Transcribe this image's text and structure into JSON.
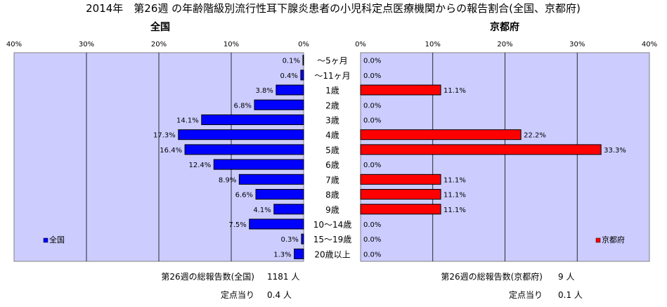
{
  "title": "2014年　第26週 の年齢階級別流行性耳下腺炎患者の小児科定点医療機関からの報告割合(全国、京都府)",
  "chart_data": [
    {
      "type": "bar",
      "orientation": "horizontal",
      "direction": "right-to-left",
      "title": "全国",
      "categories": [
        "～5ヶ月",
        "～11ヶ月",
        "1歳",
        "2歳",
        "3歳",
        "4歳",
        "5歳",
        "6歳",
        "7歳",
        "8歳",
        "9歳",
        "10～14歳",
        "15～19歳",
        "20歳以上"
      ],
      "values": [
        0.1,
        0.4,
        3.8,
        6.8,
        14.1,
        17.3,
        16.4,
        12.4,
        8.9,
        6.6,
        4.1,
        7.5,
        0.3,
        1.3
      ],
      "value_labels": [
        "0.1%",
        "0.4%",
        "3.8%",
        "6.8%",
        "14.1%",
        "17.3%",
        "16.4%",
        "12.4%",
        "8.9%",
        "6.6%",
        "4.1%",
        "7.5%",
        "0.3%",
        "1.3%"
      ],
      "xlim": [
        0,
        40
      ],
      "tick_labels": [
        "40%",
        "30%",
        "20%",
        "10%",
        "0%"
      ],
      "legend": "全国",
      "legend_position": "bottom-left",
      "grid": true,
      "bar_color": "#0000ff",
      "plot_bg": "#ccccff"
    },
    {
      "type": "bar",
      "orientation": "horizontal",
      "direction": "left-to-right",
      "title": "京都府",
      "categories": [
        "～5ヶ月",
        "～11ヶ月",
        "1歳",
        "2歳",
        "3歳",
        "4歳",
        "5歳",
        "6歳",
        "7歳",
        "8歳",
        "9歳",
        "10～14歳",
        "15～19歳",
        "20歳以上"
      ],
      "values": [
        0.0,
        0.0,
        11.1,
        0.0,
        0.0,
        22.2,
        33.3,
        0.0,
        11.1,
        11.1,
        11.1,
        0.0,
        0.0,
        0.0
      ],
      "value_labels": [
        "0.0%",
        "0.0%",
        "11.1%",
        "0.0%",
        "0.0%",
        "22.2%",
        "33.3%",
        "0.0%",
        "11.1%",
        "11.1%",
        "11.1%",
        "0.0%",
        "0.0%",
        "0.0%"
      ],
      "xlim": [
        0,
        40
      ],
      "tick_labels": [
        "0%",
        "10%",
        "20%",
        "30%",
        "40%"
      ],
      "legend": "京都府",
      "legend_position": "bottom-right",
      "grid": true,
      "bar_color": "#ff0000",
      "plot_bg": "#ccccff"
    }
  ],
  "footer": {
    "national_total_label": "第26週の総報告数(全国)",
    "national_total_value": "1181 人",
    "national_per_label": "定点当り",
    "national_per_value": "0.4 人",
    "kyoto_total_label": "第26週の総報告数(京都府)",
    "kyoto_total_value": "9 人",
    "kyoto_per_label": "定点当り",
    "kyoto_per_value": "0.1 人"
  }
}
